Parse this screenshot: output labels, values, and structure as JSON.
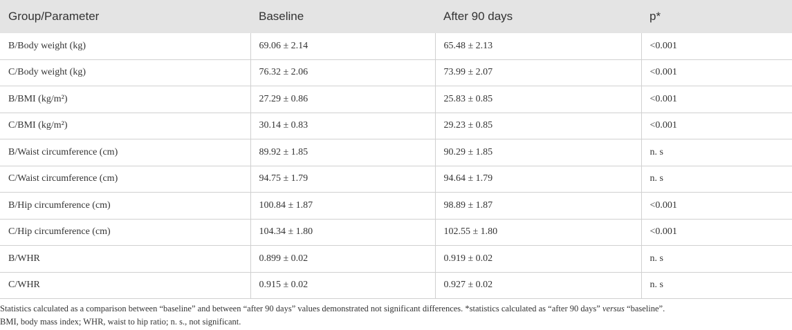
{
  "table": {
    "header": [
      "Group/Parameter",
      "Baseline",
      "After 90 days",
      "p*"
    ],
    "rows": [
      [
        "B/Body weight (kg)",
        "69.06 ± 2.14",
        "65.48 ± 2.13",
        "<0.001"
      ],
      [
        "C/Body weight (kg)",
        "76.32 ± 2.06",
        "73.99 ± 2.07",
        "<0.001"
      ],
      [
        "B/BMI (kg/m²)",
        "27.29 ± 0.86",
        "25.83 ± 0.85",
        "<0.001"
      ],
      [
        "C/BMI (kg/m²)",
        "30.14 ± 0.83",
        "29.23 ± 0.85",
        "<0.001"
      ],
      [
        "B/Waist circumference (cm)",
        "89.92 ± 1.85",
        "90.29 ± 1.85",
        "n. s"
      ],
      [
        "C/Waist circumference (cm)",
        "94.75 ± 1.79",
        "94.64 ± 1.79",
        "n. s"
      ],
      [
        "B/Hip circumference (cm)",
        "100.84 ± 1.87",
        "98.89 ± 1.87",
        "<0.001"
      ],
      [
        "C/Hip circumference (cm)",
        "104.34 ± 1.80",
        "102.55 ± 1.80",
        "<0.001"
      ],
      [
        "B/WHR",
        "0.899 ± 0.02",
        "0.919 ± 0.02",
        "n. s"
      ],
      [
        "C/WHR",
        "0.915 ± 0.02",
        "0.927 ± 0.02",
        "n. s"
      ]
    ]
  },
  "footnote": {
    "parts": [
      "Statistics calculated as a comparison between “baseline” and between “after 90 days” values demonstrated not significant differences. *statistics calculated as “after 90 days” ",
      "versus",
      " “baseline”."
    ],
    "abbreviations": "BMI, body mass index; WHR, waist to hip ratio; n. s., not significant."
  }
}
